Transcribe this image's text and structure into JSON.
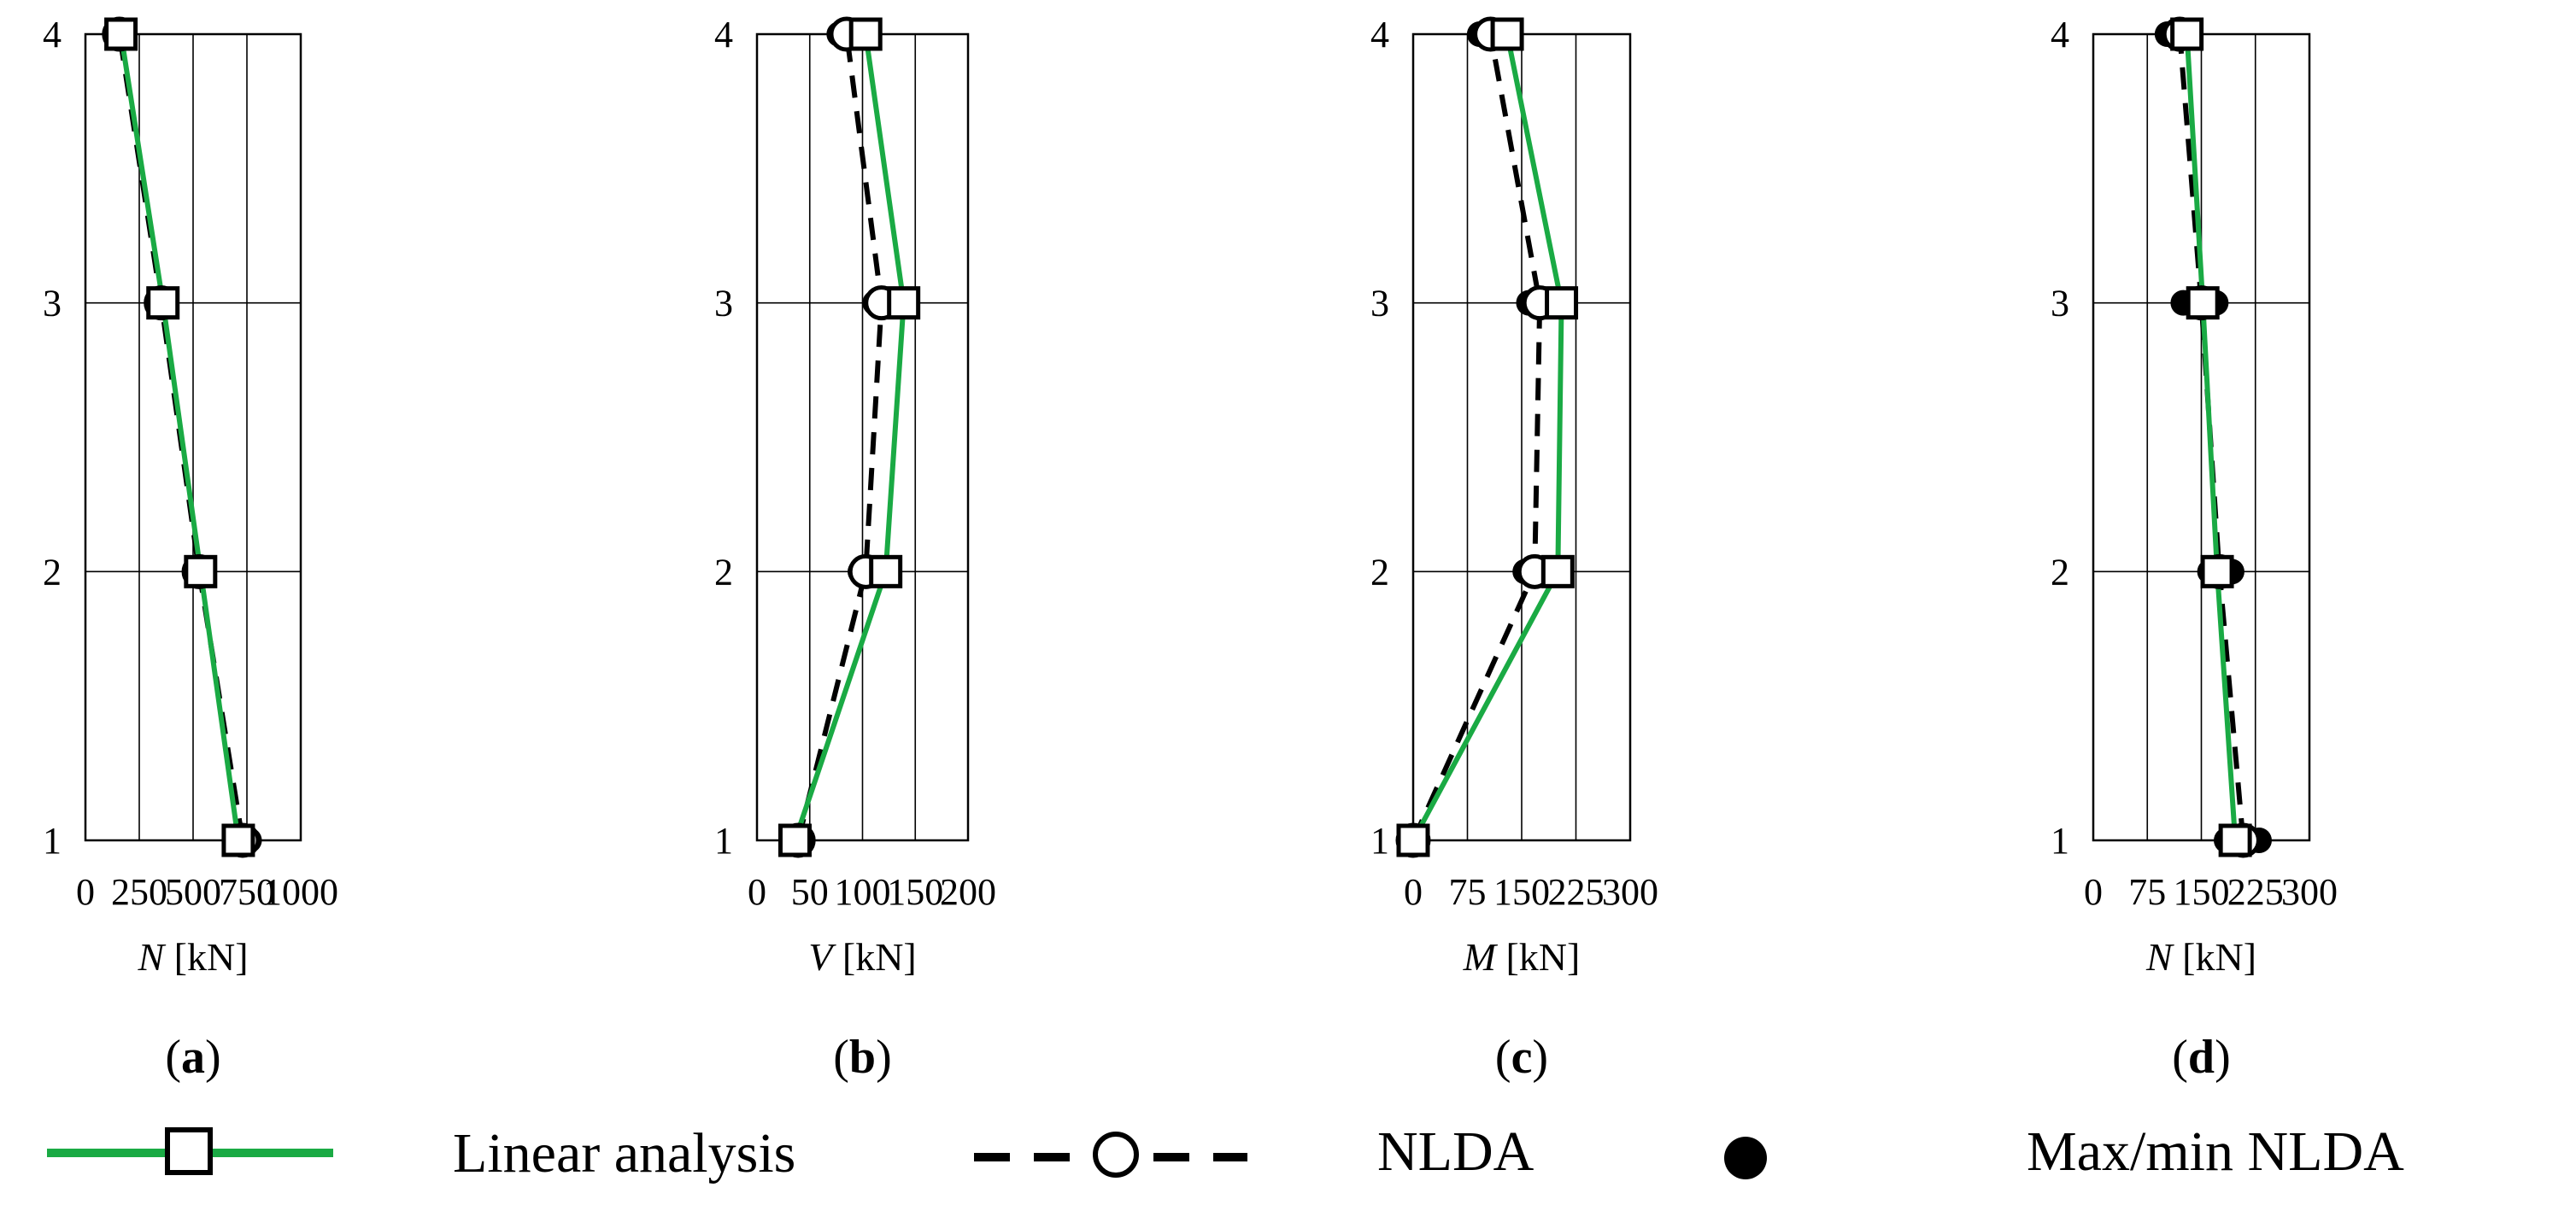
{
  "chart_data": [
    {
      "type": "line",
      "panel_label": "a",
      "xlabel_symbol": "N",
      "xlabel_unit": "[kN]",
      "xlim": [
        0,
        1000
      ],
      "xticks": [
        0,
        250,
        500,
        750,
        1000
      ],
      "ylim": [
        1,
        4
      ],
      "yticks": [
        1,
        2,
        3,
        4
      ],
      "grid": true,
      "series": [
        {
          "name": "Linear analysis",
          "y": [
            1,
            2,
            3,
            4
          ],
          "values": [
            710,
            535,
            360,
            165
          ]
        },
        {
          "name": "NLDA",
          "y": [
            1,
            2,
            3,
            4
          ],
          "values": [
            730,
            528,
            352,
            158
          ]
        },
        {
          "name": "Max/min NLDA",
          "points": [
            [
              710,
              1
            ],
            [
              760,
              1
            ],
            [
              510,
              2
            ],
            [
              545,
              2
            ],
            [
              335,
              3
            ],
            [
              365,
              3
            ],
            [
              145,
              4
            ],
            [
              170,
              4
            ]
          ]
        }
      ]
    },
    {
      "type": "line",
      "panel_label": "b",
      "xlabel_symbol": "V",
      "xlabel_unit": "[kN]",
      "xlim": [
        0,
        200
      ],
      "xticks": [
        0,
        50,
        100,
        150,
        200
      ],
      "ylim": [
        1,
        4
      ],
      "yticks": [
        1,
        2,
        3,
        4
      ],
      "grid": true,
      "series": [
        {
          "name": "Linear analysis",
          "y": [
            1,
            2,
            3,
            4
          ],
          "values": [
            36,
            122,
            139,
            103
          ]
        },
        {
          "name": "NLDA",
          "y": [
            1,
            2,
            3,
            4
          ],
          "values": [
            39,
            103,
            118,
            85
          ]
        },
        {
          "name": "Max/min NLDA",
          "points": [
            [
              35,
              1
            ],
            [
              43,
              1
            ],
            [
              98,
              2
            ],
            [
              108,
              2
            ],
            [
              112,
              3
            ],
            [
              135,
              3
            ],
            [
              78,
              4
            ],
            [
              90,
              4
            ]
          ]
        }
      ]
    },
    {
      "type": "line",
      "panel_label": "c",
      "xlabel_symbol": "M",
      "xlabel_unit": "[kN]",
      "xlim": [
        0,
        300
      ],
      "xticks": [
        0,
        75,
        150,
        225,
        300
      ],
      "ylim": [
        1,
        4
      ],
      "yticks": [
        1,
        2,
        3,
        4
      ],
      "grid": true,
      "series": [
        {
          "name": "Linear analysis",
          "y": [
            1,
            2,
            3,
            4
          ],
          "values": [
            0,
            200,
            205,
            130
          ]
        },
        {
          "name": "NLDA",
          "y": [
            1,
            2,
            3,
            4
          ],
          "values": [
            0,
            168,
            175,
            107
          ]
        },
        {
          "name": "Max/min NLDA",
          "points": [
            [
              0,
              1
            ],
            [
              3,
              1
            ],
            [
              155,
              2
            ],
            [
              182,
              2
            ],
            [
              160,
              3
            ],
            [
              190,
              3
            ],
            [
              92,
              4
            ],
            [
              120,
              4
            ]
          ]
        }
      ]
    },
    {
      "type": "line",
      "panel_label": "d",
      "xlabel_symbol": "N",
      "xlabel_unit": "[kN]",
      "xlim": [
        0,
        300
      ],
      "xticks": [
        0,
        75,
        150,
        225,
        300
      ],
      "ylim": [
        1,
        4
      ],
      "yticks": [
        1,
        2,
        3,
        4
      ],
      "grid": true,
      "series": [
        {
          "name": "Linear analysis",
          "y": [
            1,
            2,
            3,
            4
          ],
          "values": [
            197,
            172,
            152,
            130
          ]
        },
        {
          "name": "NLDA",
          "y": [
            1,
            2,
            3,
            4
          ],
          "values": [
            208,
            175,
            150,
            120
          ]
        },
        {
          "name": "Max/min NLDA",
          "points": [
            [
              185,
              1
            ],
            [
              230,
              1
            ],
            [
              162,
              2
            ],
            [
              192,
              2
            ],
            [
              125,
              3
            ],
            [
              170,
              3
            ],
            [
              103,
              4
            ],
            [
              130,
              4
            ]
          ]
        }
      ]
    }
  ],
  "legend": [
    {
      "label": "Linear analysis",
      "style": "linear"
    },
    {
      "label": "NLDA",
      "style": "nlda"
    },
    {
      "label": "Max/min NLDA",
      "style": "maxmin"
    }
  ],
  "colors": {
    "linear": "#1aaa44",
    "nlda": "#000000",
    "marker": "#000000",
    "grid": "#000000"
  }
}
